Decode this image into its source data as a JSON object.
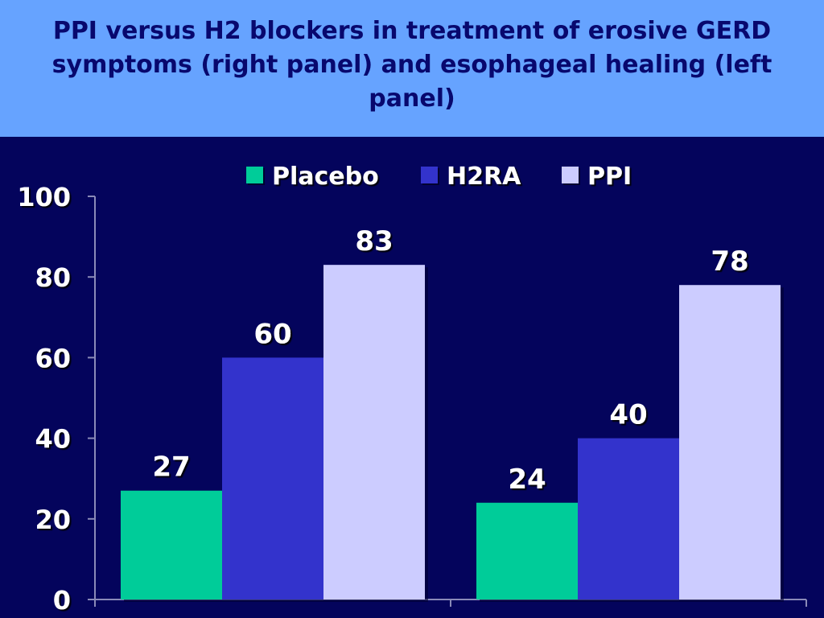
{
  "title": "PPI versus H2 blockers in treatment of erosive GERD symptoms (right panel) and esophageal healing (left panel)",
  "colors": {
    "header_bg": "#66a3ff",
    "title_text": "#08086e",
    "chart_bg": "#04045c",
    "axis": "#8a8ab8"
  },
  "chart_data": {
    "type": "bar",
    "categories": [
      "",
      ""
    ],
    "series": [
      {
        "name": "Placebo",
        "color": "#00cc99",
        "values": [
          27,
          24
        ]
      },
      {
        "name": "H2RA",
        "color": "#3333cc",
        "values": [
          60,
          40
        ]
      },
      {
        "name": "PPI",
        "color": "#ccccff",
        "values": [
          83,
          78
        ]
      }
    ],
    "ylim": [
      0,
      100
    ],
    "yticks": [
      "0",
      "20",
      "40",
      "60",
      "80",
      "100"
    ],
    "xlabel": "",
    "ylabel": "",
    "legend_position": "top",
    "grid": false,
    "data_labels": true
  }
}
